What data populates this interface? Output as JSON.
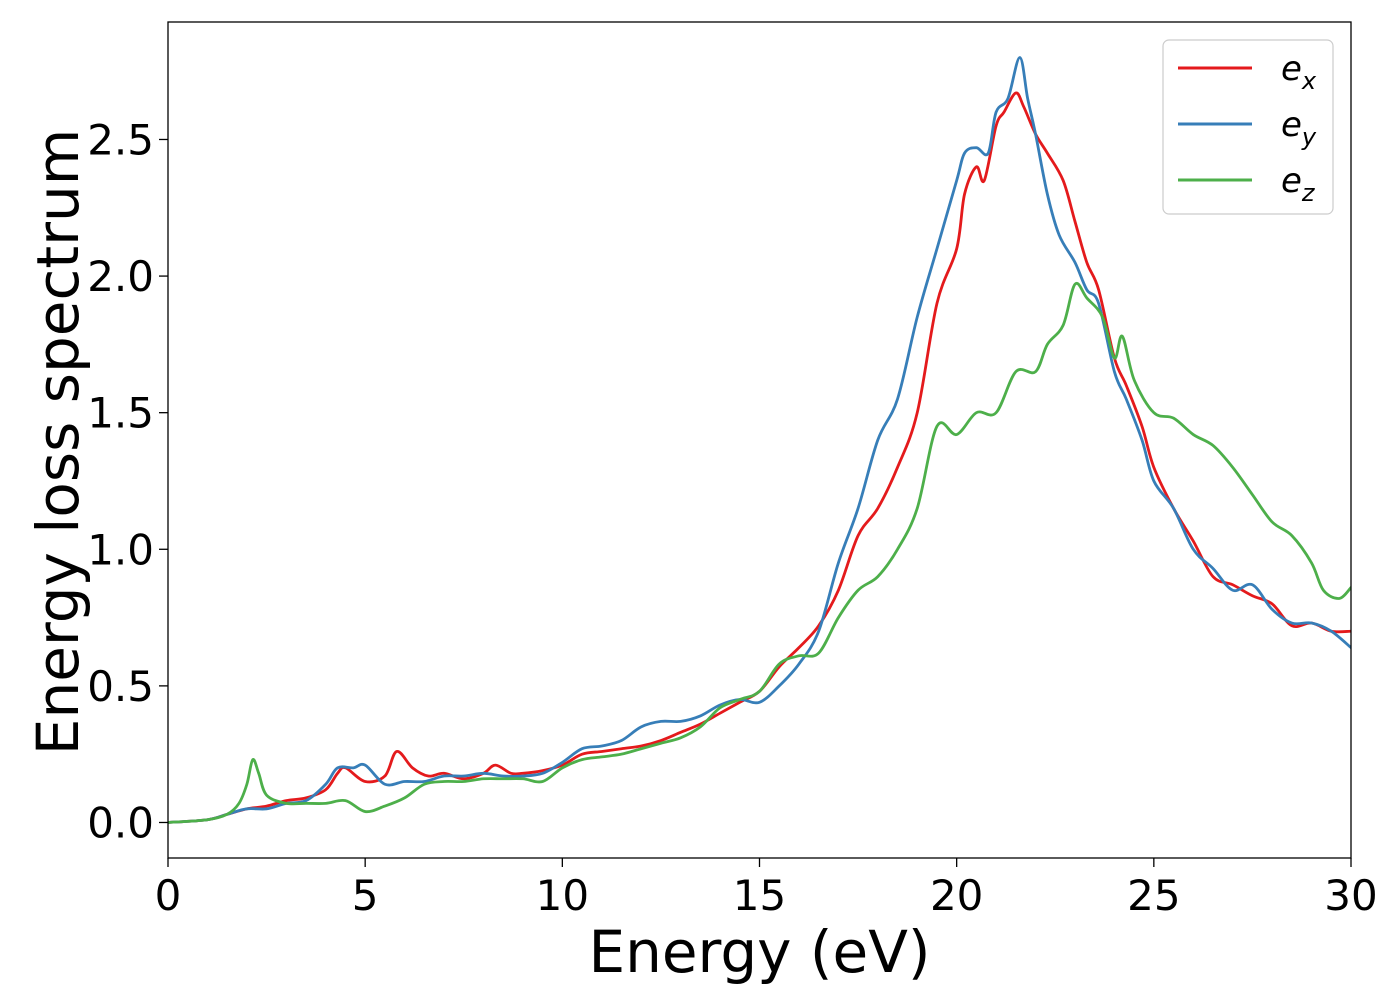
{
  "chart_data": {
    "type": "line",
    "xlabel": "Energy (eV)",
    "ylabel": "Energy loss spectrum",
    "xlim": [
      0,
      30
    ],
    "ylim": [
      -0.13,
      2.93
    ],
    "xticks": [
      0,
      5,
      10,
      15,
      20,
      25,
      30
    ],
    "xtick_labels": [
      "0",
      "5",
      "10",
      "15",
      "20",
      "25",
      "30"
    ],
    "yticks": [
      0.0,
      0.5,
      1.0,
      1.5,
      2.0,
      2.5
    ],
    "ytick_labels": [
      "0.0",
      "0.5",
      "1.0",
      "1.5",
      "2.0",
      "2.5"
    ],
    "grid": false,
    "legend_position": "top-right",
    "series": [
      {
        "name": "e",
        "subscript": "x",
        "color": "#e41a1c",
        "x": [
          0,
          1,
          1.5,
          2,
          2.5,
          3,
          3.5,
          4,
          4.3,
          4.5,
          5,
          5.5,
          5.8,
          6.2,
          6.6,
          7,
          7.5,
          8,
          8.3,
          8.7,
          9,
          9.5,
          10,
          10.5,
          11,
          11.5,
          12,
          12.5,
          13,
          13.5,
          14,
          14.5,
          15,
          15.5,
          16,
          16.5,
          17,
          17.5,
          18,
          18.5,
          19,
          19.5,
          20,
          20.2,
          20.5,
          20.7,
          21,
          21.2,
          21.5,
          21.7,
          22,
          22.3,
          22.7,
          23,
          23.3,
          23.6,
          24,
          24.3,
          24.7,
          25,
          25.5,
          26,
          26.5,
          27,
          27.5,
          28,
          28.5,
          29,
          29.5,
          30
        ],
        "values": [
          0.0,
          0.01,
          0.03,
          0.05,
          0.06,
          0.08,
          0.09,
          0.12,
          0.18,
          0.2,
          0.15,
          0.17,
          0.26,
          0.2,
          0.17,
          0.18,
          0.16,
          0.18,
          0.21,
          0.18,
          0.18,
          0.19,
          0.21,
          0.25,
          0.26,
          0.27,
          0.28,
          0.3,
          0.33,
          0.36,
          0.4,
          0.44,
          0.48,
          0.57,
          0.64,
          0.72,
          0.85,
          1.05,
          1.15,
          1.3,
          1.5,
          1.9,
          2.1,
          2.3,
          2.4,
          2.35,
          2.55,
          2.6,
          2.67,
          2.62,
          2.52,
          2.45,
          2.35,
          2.2,
          2.05,
          1.95,
          1.7,
          1.6,
          1.45,
          1.3,
          1.15,
          1.03,
          0.9,
          0.87,
          0.83,
          0.8,
          0.72,
          0.73,
          0.7,
          0.7
        ]
      },
      {
        "name": "e",
        "subscript": "y",
        "color": "#377eb8",
        "x": [
          0,
          1,
          1.5,
          2,
          2.5,
          3,
          3.5,
          4,
          4.3,
          4.7,
          5,
          5.5,
          6,
          6.5,
          7,
          7.5,
          8,
          8.5,
          9,
          9.5,
          10,
          10.5,
          11,
          11.5,
          12,
          12.5,
          13,
          13.5,
          14,
          14.5,
          15,
          15.5,
          16,
          16.5,
          17,
          17.5,
          18,
          18.5,
          19,
          19.5,
          20,
          20.2,
          20.5,
          20.8,
          21,
          21.3,
          21.6,
          21.8,
          22,
          22.3,
          22.6,
          23,
          23.3,
          23.6,
          24,
          24.3,
          24.7,
          25,
          25.5,
          26,
          26.5,
          27,
          27.5,
          28,
          28.5,
          29,
          29.5,
          30
        ],
        "values": [
          0.0,
          0.01,
          0.03,
          0.05,
          0.05,
          0.07,
          0.08,
          0.14,
          0.2,
          0.2,
          0.21,
          0.14,
          0.15,
          0.15,
          0.17,
          0.17,
          0.18,
          0.17,
          0.17,
          0.18,
          0.22,
          0.27,
          0.28,
          0.3,
          0.35,
          0.37,
          0.37,
          0.39,
          0.43,
          0.45,
          0.44,
          0.5,
          0.58,
          0.7,
          0.95,
          1.15,
          1.4,
          1.55,
          1.85,
          2.1,
          2.35,
          2.45,
          2.47,
          2.45,
          2.6,
          2.65,
          2.8,
          2.65,
          2.52,
          2.3,
          2.15,
          2.05,
          1.95,
          1.9,
          1.65,
          1.55,
          1.4,
          1.25,
          1.15,
          1.0,
          0.93,
          0.85,
          0.87,
          0.78,
          0.73,
          0.73,
          0.7,
          0.64
        ]
      },
      {
        "name": "e",
        "subscript": "z",
        "color": "#4daf4a",
        "x": [
          0,
          1,
          1.5,
          1.8,
          2.0,
          2.15,
          2.3,
          2.5,
          3,
          3.5,
          4,
          4.5,
          5,
          5.5,
          6,
          6.5,
          7,
          7.5,
          8,
          8.5,
          9,
          9.5,
          10,
          10.5,
          11,
          11.5,
          12,
          12.5,
          13,
          13.5,
          14,
          14.5,
          15,
          15.5,
          16,
          16.5,
          17,
          17.5,
          18,
          18.5,
          19,
          19.5,
          20,
          20.5,
          21,
          21.5,
          22,
          22.3,
          22.7,
          23,
          23.3,
          23.7,
          24,
          24.2,
          24.5,
          25,
          25.5,
          26,
          26.5,
          27,
          27.5,
          28,
          28.5,
          29,
          29.3,
          29.7,
          30
        ],
        "values": [
          0.0,
          0.01,
          0.03,
          0.07,
          0.14,
          0.23,
          0.18,
          0.1,
          0.07,
          0.07,
          0.07,
          0.08,
          0.04,
          0.06,
          0.09,
          0.14,
          0.15,
          0.15,
          0.16,
          0.16,
          0.16,
          0.15,
          0.2,
          0.23,
          0.24,
          0.25,
          0.27,
          0.29,
          0.31,
          0.35,
          0.42,
          0.45,
          0.48,
          0.58,
          0.61,
          0.62,
          0.75,
          0.85,
          0.9,
          1.0,
          1.15,
          1.45,
          1.42,
          1.5,
          1.5,
          1.65,
          1.65,
          1.75,
          1.82,
          1.97,
          1.92,
          1.85,
          1.7,
          1.78,
          1.62,
          1.5,
          1.48,
          1.42,
          1.38,
          1.3,
          1.2,
          1.1,
          1.05,
          0.95,
          0.85,
          0.82,
          0.86
        ]
      }
    ]
  }
}
